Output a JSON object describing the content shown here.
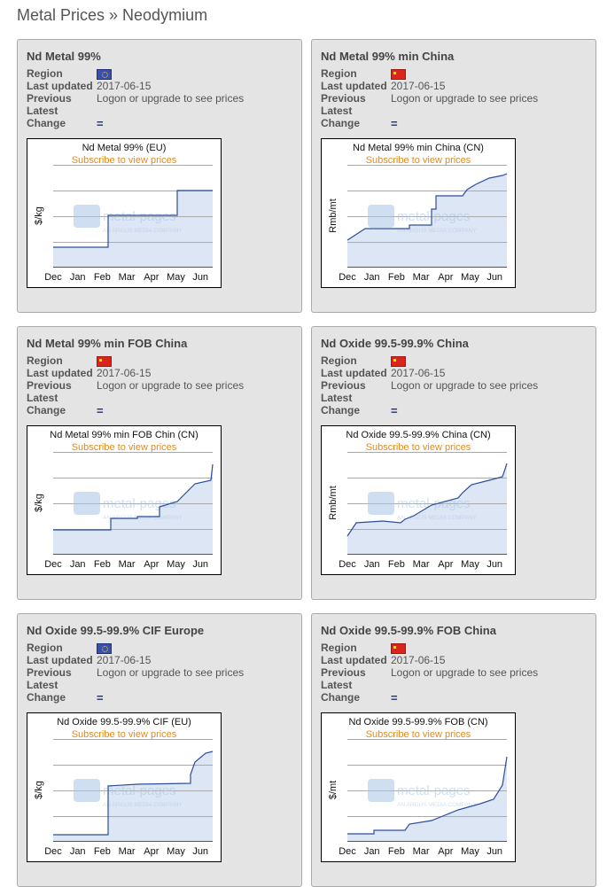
{
  "header": {
    "title": "Metal Prices » Neodymium"
  },
  "labels": [
    "Region",
    "Last updated",
    "Previous",
    "Latest",
    "Change"
  ],
  "months": [
    "Dec",
    "Jan",
    "Feb",
    "Mar",
    "Apr",
    "May",
    "Jun"
  ],
  "subscribe": "Subscribe to view prices",
  "watermark": {
    "brand": "metal-pages",
    "tagline": "AN ARGUS MEDIA COMPANY"
  },
  "cards": [
    {
      "title": "Nd Metal 99%",
      "last_updated": "2017-06-15",
      "previous": "Logon or upgrade to see prices",
      "change": "=",
      "chart_title": "Nd Metal 99% (EU)",
      "unit": "$/kg"
    },
    {
      "title": "Nd Metal 99% min China",
      "last_updated": "2017-06-15",
      "previous": "Logon or upgrade to see prices",
      "change": "=",
      "chart_title": "Nd Metal 99% min China (CN)",
      "unit": "Rmb/mt"
    },
    {
      "title": "Nd Metal 99% min FOB China",
      "last_updated": "2017-06-15",
      "previous": "Logon or upgrade to see prices",
      "change": "=",
      "chart_title": "Nd Metal 99% min FOB Chin (CN)",
      "unit": "$/kg"
    },
    {
      "title": "Nd Oxide 99.5-99.9% China",
      "last_updated": "2017-06-15",
      "previous": "Logon or upgrade to see prices",
      "change": "=",
      "chart_title": "Nd Oxide 99.5-99.9% China (CN)",
      "unit": "Rmb/mt"
    },
    {
      "title": "Nd Oxide 99.5-99.9% CIF Europe",
      "last_updated": "2017-06-15",
      "previous": "Logon or upgrade to see prices",
      "change": "=",
      "chart_title": "Nd Oxide 99.5-99.9% CIF (EU)",
      "unit": "$/kg"
    },
    {
      "title": "Nd Oxide 99.5-99.9% FOB China",
      "last_updated": "2017-06-15",
      "previous": "Logon or upgrade to see prices",
      "change": "=",
      "chart_title": "Nd Oxide 99.5-99.9% FOB (CN)",
      "unit": "$/mt"
    }
  ]
}
